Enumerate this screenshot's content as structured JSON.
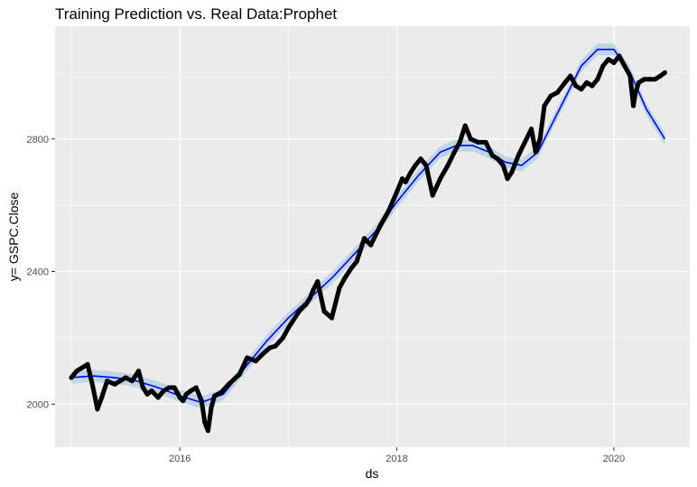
{
  "chart_data": {
    "type": "line",
    "title": "Training Prediction vs. Real Data:Prophet",
    "xlabel": "ds",
    "ylabel": "y= GSPC.Close",
    "xlim": [
      2014.85,
      2020.7
    ],
    "ylim": [
      1870,
      3140
    ],
    "x_ticks": [
      {
        "value": 2016,
        "label": "2016"
      },
      {
        "value": 2018,
        "label": "2018"
      },
      {
        "value": 2020,
        "label": "2020"
      }
    ],
    "y_ticks": [
      {
        "value": 2000,
        "label": "2000"
      },
      {
        "value": 2400,
        "label": "2400"
      },
      {
        "value": 2800,
        "label": "2800"
      }
    ],
    "grid": true,
    "colors": {
      "panel": "#ebebeb",
      "grid": "#ffffff",
      "actual": "#000000",
      "prediction": "#0000ff",
      "band": "#b4d3e0"
    },
    "series": [
      {
        "role": "actual",
        "x": [
          2015.0,
          2015.05,
          2015.1,
          2015.15,
          2015.2,
          2015.24,
          2015.28,
          2015.33,
          2015.4,
          2015.45,
          2015.5,
          2015.56,
          2015.62,
          2015.66,
          2015.7,
          2015.74,
          2015.8,
          2015.85,
          2015.9,
          2015.95,
          2016.0,
          2016.03,
          2016.06,
          2016.1,
          2016.15,
          2016.2,
          2016.23,
          2016.26,
          2016.29,
          2016.32,
          2016.38,
          2016.45,
          2016.5,
          2016.55,
          2016.62,
          2016.7,
          2016.76,
          2016.83,
          2016.88,
          2016.95,
          2017.0,
          2017.1,
          2017.16,
          2017.2,
          2017.23,
          2017.27,
          2017.33,
          2017.4,
          2017.47,
          2017.52,
          2017.58,
          2017.63,
          2017.7,
          2017.76,
          2017.85,
          2017.92,
          2018.0,
          2018.05,
          2018.08,
          2018.13,
          2018.17,
          2018.22,
          2018.27,
          2018.33,
          2018.4,
          2018.47,
          2018.53,
          2018.58,
          2018.63,
          2018.68,
          2018.75,
          2018.82,
          2018.88,
          2018.93,
          2018.98,
          2019.02,
          2019.06,
          2019.12,
          2019.18,
          2019.24,
          2019.28,
          2019.32,
          2019.36,
          2019.42,
          2019.48,
          2019.55,
          2019.6,
          2019.65,
          2019.7,
          2019.75,
          2019.8,
          2019.85,
          2019.9,
          2019.95,
          2020.0,
          2020.05,
          2020.1,
          2020.15,
          2020.18,
          2020.2,
          2020.23,
          2020.28,
          2020.33,
          2020.38,
          2020.43,
          2020.47
        ],
        "y": [
          2080,
          2100,
          2110,
          2120,
          2050,
          1985,
          2020,
          2070,
          2060,
          2070,
          2080,
          2070,
          2100,
          2050,
          2030,
          2040,
          2020,
          2040,
          2050,
          2050,
          2020,
          2010,
          2030,
          2040,
          2050,
          2010,
          1945,
          1920,
          1990,
          2025,
          2035,
          2060,
          2075,
          2090,
          2140,
          2130,
          2150,
          2170,
          2175,
          2200,
          2230,
          2280,
          2300,
          2320,
          2345,
          2370,
          2280,
          2260,
          2350,
          2380,
          2410,
          2430,
          2500,
          2480,
          2540,
          2580,
          2640,
          2680,
          2670,
          2700,
          2720,
          2740,
          2720,
          2630,
          2680,
          2720,
          2760,
          2790,
          2840,
          2800,
          2790,
          2790,
          2750,
          2740,
          2720,
          2680,
          2700,
          2750,
          2790,
          2830,
          2760,
          2800,
          2900,
          2930,
          2940,
          2970,
          2990,
          2960,
          2950,
          2970,
          2960,
          2980,
          3020,
          3040,
          3030,
          3050,
          3020,
          2990,
          2900,
          2940,
          2970,
          2980,
          2980,
          2980,
          2990,
          3000
        ]
      },
      {
        "role": "prediction",
        "x": [
          2015.0,
          2015.2,
          2015.4,
          2015.6,
          2015.8,
          2016.0,
          2016.2,
          2016.4,
          2016.6,
          2016.8,
          2017.0,
          2017.2,
          2017.4,
          2017.6,
          2017.8,
          2018.0,
          2018.2,
          2018.4,
          2018.55,
          2018.7,
          2018.85,
          2019.0,
          2019.15,
          2019.3,
          2019.5,
          2019.7,
          2019.85,
          2020.0,
          2020.15,
          2020.3,
          2020.47
        ],
        "y": [
          2080,
          2085,
          2080,
          2070,
          2050,
          2025,
          2005,
          2030,
          2110,
          2190,
          2260,
          2320,
          2380,
          2450,
          2520,
          2610,
          2690,
          2760,
          2780,
          2780,
          2760,
          2730,
          2720,
          2760,
          2890,
          3020,
          3070,
          3070,
          3000,
          2890,
          2800
        ],
        "band_halfwidth": 18
      }
    ]
  }
}
